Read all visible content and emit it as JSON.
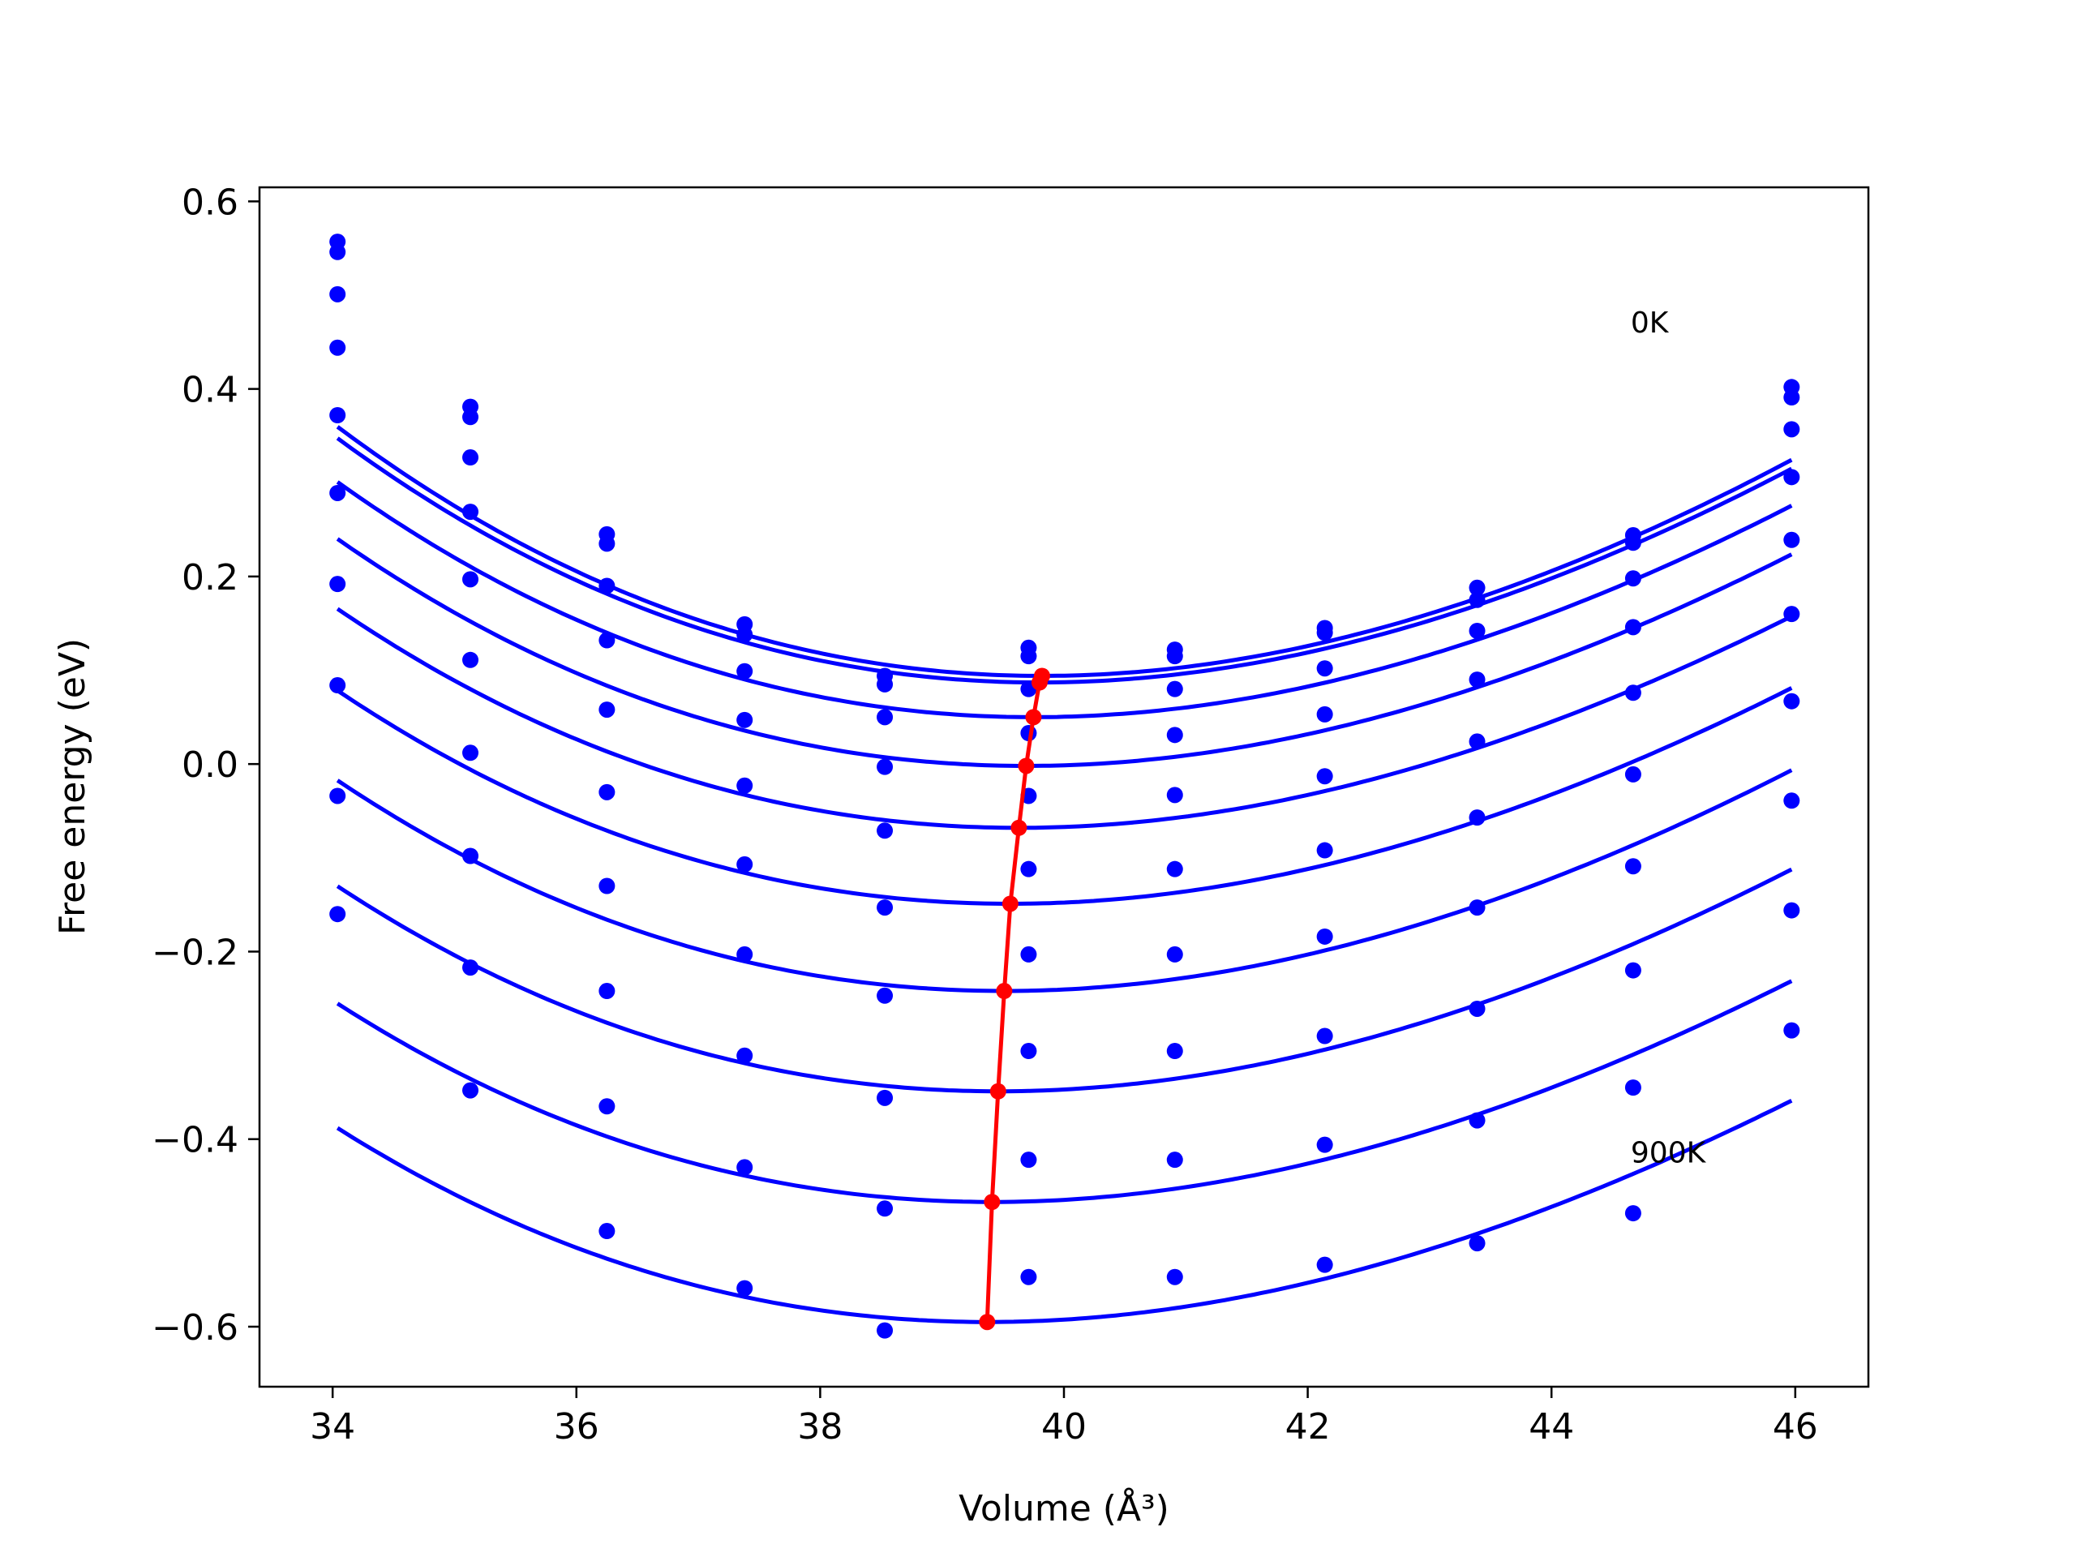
{
  "chart_data": {
    "type": "line",
    "xlabel": "Volume (Å³)",
    "ylabel": "Free energy (eV)",
    "xlim": [
      33.4,
      46.6
    ],
    "ylim": [
      -0.664,
      0.615
    ],
    "xticks": [
      34,
      36,
      38,
      40,
      42,
      44,
      46
    ],
    "xtick_labels": [
      "34",
      "36",
      "38",
      "40",
      "42",
      "44",
      "46"
    ],
    "yticks": [
      -0.6,
      -0.4,
      -0.2,
      0.0,
      0.2,
      0.4,
      0.6
    ],
    "ytick_labels": [
      "−0.6",
      "−0.4",
      "−0.2",
      "0.0",
      "0.2",
      "0.4",
      "0.6"
    ],
    "grid": false,
    "colors": {
      "curves": "#0000ff",
      "points": "#0000ff",
      "minimum": "#ff0000"
    },
    "annotations": [
      {
        "text": "0K",
        "x": 44.65,
        "y": 0.46
      },
      {
        "text": "900K",
        "x": 44.65,
        "y": -0.425
      }
    ],
    "point_x": [
      34.04,
      35.13,
      36.25,
      37.38,
      38.53,
      39.71,
      40.91,
      42.14,
      43.39,
      44.67,
      45.97
    ],
    "series": [
      {
        "points_y": [
          0.557,
          0.381,
          0.245,
          0.149,
          0.094,
          0.124,
          0.122,
          0.145,
          0.188,
          0.244,
          0.402
        ],
        "fit": {
          "vmin": 39.82,
          "emin": 0.094,
          "a": 0.00705,
          "b": -0.000156
        }
      },
      {
        "points_y": [
          0.546,
          0.37,
          0.235,
          0.138,
          0.085,
          0.115,
          0.115,
          0.14,
          0.175,
          0.236,
          0.391
        ],
        "fit": {
          "vmin": 39.8,
          "emin": 0.087,
          "a": 0.00695,
          "b": -0.000156
        }
      },
      {
        "points_y": [
          0.501,
          0.327,
          0.19,
          0.099,
          0.05,
          0.08,
          0.08,
          0.102,
          0.142,
          0.198,
          0.357
        ],
        "fit": {
          "vmin": 39.75,
          "emin": 0.05,
          "a": 0.0068,
          "b": -0.000156
        }
      },
      {
        "points_y": [
          0.444,
          0.269,
          0.132,
          0.047,
          -0.003,
          0.033,
          0.031,
          0.053,
          0.09,
          0.146,
          0.306
        ],
        "fit": {
          "vmin": 39.69,
          "emin": -0.002,
          "a": 0.0067,
          "b": -0.000156
        }
      },
      {
        "points_y": [
          0.372,
          0.197,
          0.058,
          -0.023,
          -0.071,
          -0.034,
          -0.033,
          -0.013,
          0.024,
          0.076,
          0.239
        ],
        "fit": {
          "vmin": 39.63,
          "emin": -0.068,
          "a": 0.0066,
          "b": -0.000156
        }
      },
      {
        "points_y": [
          0.289,
          0.111,
          -0.03,
          -0.107,
          -0.153,
          -0.112,
          -0.112,
          -0.092,
          -0.057,
          -0.011,
          0.16
        ],
        "fit": {
          "vmin": 39.56,
          "emin": -0.149,
          "a": 0.0066,
          "b": -0.000156
        }
      },
      {
        "points_y": [
          0.192,
          0.012,
          -0.13,
          -0.203,
          -0.247,
          -0.203,
          -0.203,
          -0.184,
          -0.153,
          -0.109,
          0.067
        ],
        "fit": {
          "vmin": 39.51,
          "emin": -0.242,
          "a": 0.00665,
          "b": -0.000156
        }
      },
      {
        "points_y": [
          0.084,
          -0.098,
          -0.242,
          -0.311,
          -0.356,
          -0.306,
          -0.306,
          -0.29,
          -0.261,
          -0.22,
          -0.039
        ],
        "fit": {
          "vmin": 39.46,
          "emin": -0.349,
          "a": 0.0066,
          "b": -0.000156
        }
      },
      {
        "points_y": [
          -0.034,
          -0.217,
          -0.365,
          -0.43,
          -0.474,
          -0.422,
          -0.422,
          -0.406,
          -0.38,
          -0.345,
          -0.156
        ],
        "fit": {
          "vmin": 39.41,
          "emin": -0.467,
          "a": 0.0065,
          "b": -0.000156
        }
      },
      {
        "points_y": [
          -0.16,
          -0.348,
          -0.498,
          -0.559,
          -0.604,
          -0.547,
          -0.547,
          -0.534,
          -0.511,
          -0.479,
          -0.284
        ],
        "fit": {
          "vmin": 39.37,
          "emin": -0.595,
          "a": 0.00645,
          "b": -0.000156
        }
      }
    ],
    "minimum_line": {
      "x": [
        39.82,
        39.8,
        39.75,
        39.69,
        39.63,
        39.56,
        39.51,
        39.46,
        39.41,
        39.37
      ],
      "y": [
        0.094,
        0.087,
        0.05,
        -0.002,
        -0.068,
        -0.149,
        -0.242,
        -0.349,
        -0.467,
        -0.595
      ]
    }
  }
}
